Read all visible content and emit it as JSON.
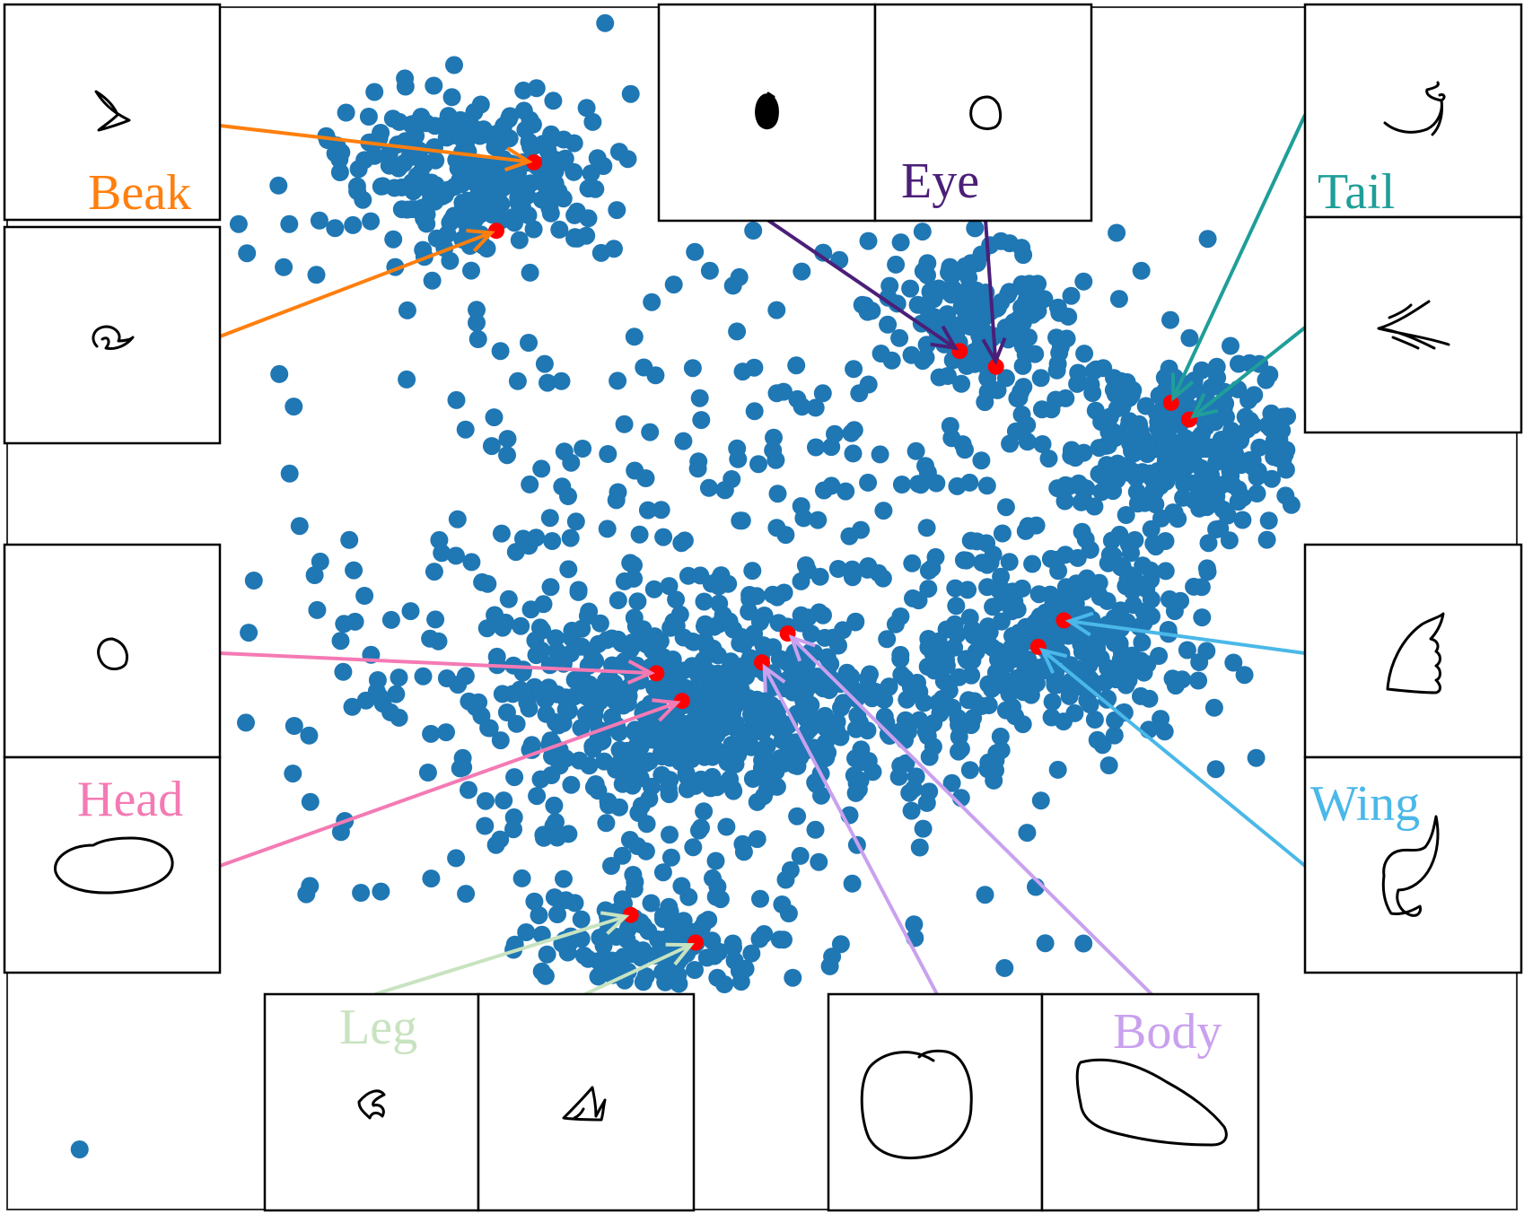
{
  "chart_data": {
    "type": "scatter",
    "title": "",
    "xlabel": "",
    "ylabel": "",
    "grid": false,
    "legend": "none",
    "point_color": "#1f77b4",
    "highlight_color": "#ff0000",
    "clusters": [
      {
        "name": "beak",
        "center": [
          0.31,
          0.14
        ],
        "spread": [
          0.045,
          0.035
        ],
        "count": 260
      },
      {
        "name": "eye",
        "center": [
          0.64,
          0.25
        ],
        "spread": [
          0.035,
          0.03
        ],
        "count": 140
      },
      {
        "name": "tail",
        "center": [
          0.78,
          0.36
        ],
        "spread": [
          0.05,
          0.035
        ],
        "count": 320
      },
      {
        "name": "wing",
        "center": [
          0.7,
          0.52
        ],
        "spread": [
          0.04,
          0.04
        ],
        "count": 240
      },
      {
        "name": "head-body",
        "center": [
          0.46,
          0.58
        ],
        "spread": [
          0.09,
          0.045
        ],
        "count": 560
      },
      {
        "name": "leg",
        "center": [
          0.42,
          0.79
        ],
        "spread": [
          0.035,
          0.035
        ],
        "count": 150
      },
      {
        "name": "scatter",
        "center": [
          0.5,
          0.5
        ],
        "spread": [
          0.17,
          0.18
        ],
        "count": 520
      }
    ],
    "highlighted_points": [
      {
        "label": "Beak",
        "x": 0.349,
        "y": 0.129
      },
      {
        "label": "Beak",
        "x": 0.324,
        "y": 0.186
      },
      {
        "label": "Eye",
        "x": 0.631,
        "y": 0.286
      },
      {
        "label": "Eye",
        "x": 0.655,
        "y": 0.299
      },
      {
        "label": "Tail",
        "x": 0.771,
        "y": 0.329
      },
      {
        "label": "Tail",
        "x": 0.783,
        "y": 0.343
      },
      {
        "label": "Wing",
        "x": 0.7,
        "y": 0.51
      },
      {
        "label": "Wing",
        "x": 0.683,
        "y": 0.532
      },
      {
        "label": "Head",
        "x": 0.43,
        "y": 0.554
      },
      {
        "label": "Head",
        "x": 0.447,
        "y": 0.577
      },
      {
        "label": "Body",
        "x": 0.517,
        "y": 0.521
      },
      {
        "label": "Body",
        "x": 0.5,
        "y": 0.545
      },
      {
        "label": "Leg",
        "x": 0.413,
        "y": 0.755
      },
      {
        "label": "Leg",
        "x": 0.456,
        "y": 0.778
      }
    ],
    "outlier_point": {
      "x": 0.048,
      "y": 0.95
    }
  },
  "labels": {
    "beak": {
      "text": "Beak",
      "color": "#ff7f0e"
    },
    "eye": {
      "text": "Eye",
      "color": "#4b1f78"
    },
    "tail": {
      "text": "Tail",
      "color": "#1f9e99"
    },
    "wing": {
      "text": "Wing",
      "color": "#4ab8e8"
    },
    "head": {
      "text": "Head",
      "color": "#f47ab4"
    },
    "body": {
      "text": "Body",
      "color": "#c9a1ef"
    },
    "leg": {
      "text": "Leg",
      "color": "#c8e3c0"
    }
  },
  "sketches": [
    {
      "part": "beak",
      "icon": "beak-sketch-icon"
    },
    {
      "part": "beak",
      "icon": "beak-sketch-icon"
    },
    {
      "part": "eye",
      "icon": "eye-filled-sketch-icon"
    },
    {
      "part": "eye",
      "icon": "eye-circle-sketch-icon"
    },
    {
      "part": "tail",
      "icon": "tail-sketch-icon"
    },
    {
      "part": "tail",
      "icon": "tail-feather-sketch-icon"
    },
    {
      "part": "head",
      "icon": "head-small-circle-sketch-icon"
    },
    {
      "part": "head",
      "icon": "head-oval-sketch-icon"
    },
    {
      "part": "wing",
      "icon": "wing-sketch-icon"
    },
    {
      "part": "wing",
      "icon": "wing-curved-sketch-icon"
    },
    {
      "part": "leg",
      "icon": "leg-claw-sketch-icon"
    },
    {
      "part": "leg",
      "icon": "leg-foot-sketch-icon"
    },
    {
      "part": "body",
      "icon": "body-circle-sketch-icon"
    },
    {
      "part": "body",
      "icon": "body-oval-sketch-icon"
    }
  ]
}
